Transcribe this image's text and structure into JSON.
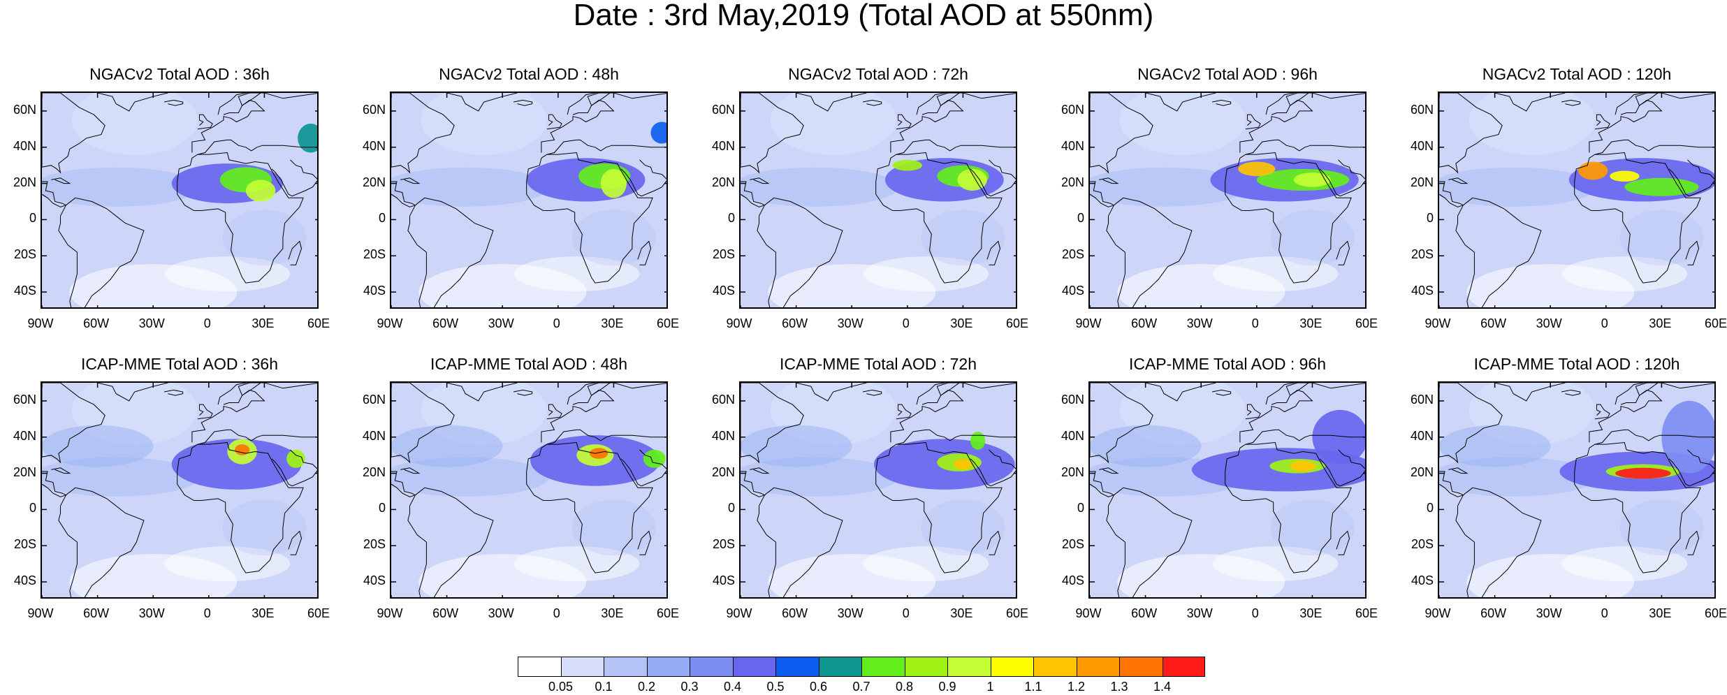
{
  "title": "Date : 3rd May,2019 (Total AOD at 550nm)",
  "lat_labels": [
    "60N",
    "40N",
    "20N",
    "0",
    "20S",
    "40S"
  ],
  "lat_values": [
    60,
    40,
    20,
    0,
    -20,
    -40
  ],
  "lon_labels": [
    "90W",
    "60W",
    "30W",
    "0",
    "30E",
    "60E"
  ],
  "lon_values": [
    -90,
    -60,
    -30,
    0,
    30,
    60
  ],
  "extent": {
    "lon": [
      -90,
      60
    ],
    "lat": [
      -50,
      70
    ]
  },
  "panels": [
    {
      "title": "NGACv2 Total AOD : 36h",
      "model": "NGACv2",
      "lead": "36h",
      "plumes": [
        {
          "lon": 10,
          "lat": 20,
          "rx": 30,
          "ry": 11,
          "level": 5
        },
        {
          "lon": 20,
          "lat": 22,
          "rx": 14,
          "ry": 7,
          "level": 8
        },
        {
          "lon": 28,
          "lat": 16,
          "rx": 8,
          "ry": 6,
          "level": 10
        },
        {
          "lon": 55,
          "lat": 45,
          "rx": 7,
          "ry": 8,
          "level": 7
        }
      ]
    },
    {
      "title": "NGACv2 Total AOD : 48h",
      "model": "NGACv2",
      "lead": "48h",
      "plumes": [
        {
          "lon": 15,
          "lat": 22,
          "rx": 32,
          "ry": 12,
          "level": 5
        },
        {
          "lon": 25,
          "lat": 24,
          "rx": 14,
          "ry": 7,
          "level": 8
        },
        {
          "lon": 30,
          "lat": 20,
          "rx": 7,
          "ry": 8,
          "level": 10
        },
        {
          "lon": 56,
          "lat": 48,
          "rx": 6,
          "ry": 6,
          "level": 6
        }
      ]
    },
    {
      "title": "NGACv2 Total AOD : 72h",
      "model": "NGACv2",
      "lead": "72h",
      "plumes": [
        {
          "lon": 20,
          "lat": 22,
          "rx": 32,
          "ry": 12,
          "level": 5
        },
        {
          "lon": 30,
          "lat": 24,
          "rx": 14,
          "ry": 6,
          "level": 8
        },
        {
          "lon": 0,
          "lat": 30,
          "rx": 8,
          "ry": 3,
          "level": 9
        },
        {
          "lon": 35,
          "lat": 22,
          "rx": 8,
          "ry": 6,
          "level": 10
        }
      ]
    },
    {
      "title": "NGACv2 Total AOD : 96h",
      "model": "NGACv2",
      "lead": "96h",
      "plumes": [
        {
          "lon": 15,
          "lat": 22,
          "rx": 40,
          "ry": 12,
          "level": 5
        },
        {
          "lon": 25,
          "lat": 22,
          "rx": 25,
          "ry": 6,
          "level": 8
        },
        {
          "lon": 0,
          "lat": 28,
          "rx": 10,
          "ry": 4,
          "level": 12
        },
        {
          "lon": 30,
          "lat": 22,
          "rx": 10,
          "ry": 4,
          "level": 10
        }
      ]
    },
    {
      "title": "NGACv2 Total AOD : 120h",
      "model": "NGACv2",
      "lead": "120h",
      "plumes": [
        {
          "lon": 20,
          "lat": 22,
          "rx": 40,
          "ry": 12,
          "level": 5
        },
        {
          "lon": 30,
          "lat": 18,
          "rx": 20,
          "ry": 5,
          "level": 8
        },
        {
          "lon": -7,
          "lat": 27,
          "rx": 8,
          "ry": 5,
          "level": 13
        },
        {
          "lon": 10,
          "lat": 24,
          "rx": 8,
          "ry": 3,
          "level": 11
        }
      ]
    },
    {
      "title": "ICAP-MME Total AOD : 36h",
      "model": "ICAP-MME",
      "lead": "36h",
      "plumes": [
        {
          "lon": 15,
          "lat": 25,
          "rx": 35,
          "ry": 14,
          "level": 5
        },
        {
          "lon": 18,
          "lat": 32,
          "rx": 8,
          "ry": 7,
          "level": 10
        },
        {
          "lon": 18,
          "lat": 33,
          "rx": 4,
          "ry": 3,
          "level": 14
        },
        {
          "lon": 47,
          "lat": 28,
          "rx": 5,
          "ry": 5,
          "level": 9
        }
      ]
    },
    {
      "title": "ICAP-MME Total AOD : 48h",
      "model": "ICAP-MME",
      "lead": "48h",
      "plumes": [
        {
          "lon": 20,
          "lat": 27,
          "rx": 35,
          "ry": 14,
          "level": 5
        },
        {
          "lon": 20,
          "lat": 30,
          "rx": 10,
          "ry": 6,
          "level": 10
        },
        {
          "lon": 22,
          "lat": 31,
          "rx": 5,
          "ry": 3,
          "level": 14
        },
        {
          "lon": 52,
          "lat": 28,
          "rx": 6,
          "ry": 5,
          "level": 8
        }
      ]
    },
    {
      "title": "ICAP-MME Total AOD : 72h",
      "model": "ICAP-MME",
      "lead": "72h",
      "plumes": [
        {
          "lon": 20,
          "lat": 25,
          "rx": 38,
          "ry": 14,
          "level": 5
        },
        {
          "lon": 28,
          "lat": 26,
          "rx": 12,
          "ry": 5,
          "level": 9
        },
        {
          "lon": 30,
          "lat": 25,
          "rx": 5,
          "ry": 3,
          "level": 12
        },
        {
          "lon": 38,
          "lat": 38,
          "rx": 4,
          "ry": 5,
          "level": 8
        }
      ]
    },
    {
      "title": "ICAP-MME Total AOD : 96h",
      "model": "ICAP-MME",
      "lead": "96h",
      "plumes": [
        {
          "lon": 15,
          "lat": 22,
          "rx": 50,
          "ry": 12,
          "level": 5
        },
        {
          "lon": 22,
          "lat": 24,
          "rx": 15,
          "ry": 4,
          "level": 9
        },
        {
          "lon": 25,
          "lat": 24,
          "rx": 7,
          "ry": 3,
          "level": 12
        },
        {
          "lon": 45,
          "lat": 40,
          "rx": 15,
          "ry": 15,
          "level": 5
        }
      ]
    },
    {
      "title": "ICAP-MME Total AOD : 120h",
      "model": "ICAP-MME",
      "lead": "120h",
      "plumes": [
        {
          "lon": 20,
          "lat": 21,
          "rx": 45,
          "ry": 11,
          "level": 5
        },
        {
          "lon": 20,
          "lat": 21,
          "rx": 20,
          "ry": 4,
          "level": 9
        },
        {
          "lon": 20,
          "lat": 20,
          "rx": 15,
          "ry": 3,
          "level": 15
        },
        {
          "lon": 45,
          "lat": 40,
          "rx": 15,
          "ry": 20,
          "level": 4
        }
      ]
    }
  ],
  "colorbar": {
    "colors": [
      "#ffffff",
      "#d6defa",
      "#b5c4f6",
      "#93acf5",
      "#7d8ef2",
      "#6866ee",
      "#0d5ef0",
      "#0d9592",
      "#63ee1a",
      "#a0f215",
      "#c4fd33",
      "#ffff00",
      "#ffc300",
      "#ff9900",
      "#ff7300",
      "#ff1a1a"
    ],
    "labels": [
      "0.05",
      "0.1",
      "0.2",
      "0.3",
      "0.4",
      "0.5",
      "0.6",
      "0.7",
      "0.8",
      "0.9",
      "1",
      "1.1",
      "1.2",
      "1.3",
      "1.4"
    ]
  }
}
